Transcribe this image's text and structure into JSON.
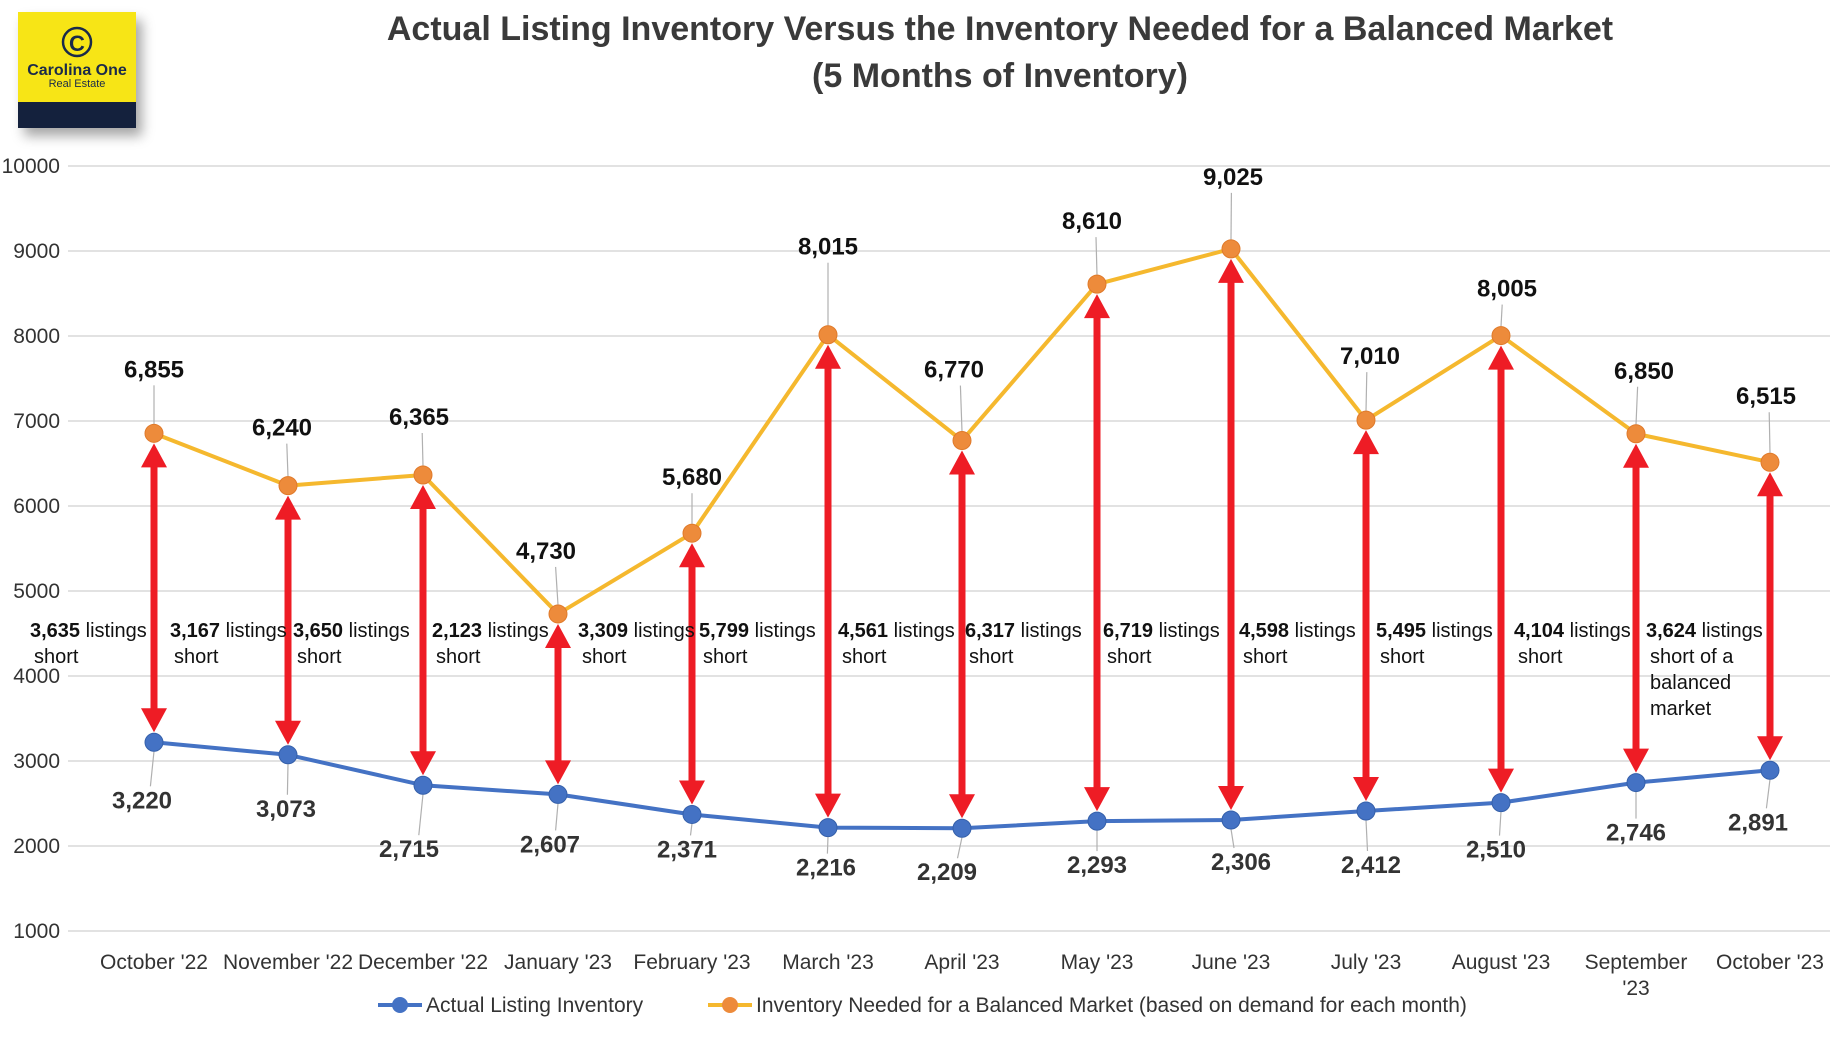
{
  "logo": {
    "name": "Carolina One",
    "subtitle": "Real Estate",
    "yellow": "#f7e514",
    "navy": "#14213d"
  },
  "chart_data": {
    "type": "line",
    "title": "Actual Listing Inventory Versus the Inventory Needed for a Balanced Market",
    "subtitle": "(5 Months of Inventory)",
    "xlabel": "",
    "ylabel": "",
    "ylim": [
      1000,
      10000
    ],
    "yticks": [
      "1000",
      "2000",
      "3000",
      "4000",
      "5000",
      "6000",
      "7000",
      "8000",
      "9000",
      "10000"
    ],
    "grid": true,
    "legend_position": "bottom",
    "categories": [
      [
        "October '22"
      ],
      [
        "November '22"
      ],
      [
        "December '22"
      ],
      [
        "January '23"
      ],
      [
        "February '23"
      ],
      [
        "March '23"
      ],
      [
        "April '23"
      ],
      [
        "May '23"
      ],
      [
        "June '23"
      ],
      [
        "July '23"
      ],
      [
        "August '23"
      ],
      [
        "September",
        "'23"
      ],
      [
        "October '23"
      ]
    ],
    "series": [
      {
        "name": "Actual Listing Inventory",
        "color": "#4472c4",
        "values": [
          3220,
          3073,
          2715,
          2607,
          2371,
          2216,
          2209,
          2293,
          2306,
          2412,
          2510,
          2746,
          2891
        ],
        "labels": [
          "3,220",
          "3,073",
          "2,715",
          "2,607",
          "2,371",
          "2,216",
          "2,209",
          "2,293",
          "2,306",
          "2,412",
          "2,510",
          "2,746",
          "2,891"
        ]
      },
      {
        "name": "Inventory Needed for a Balanced Market (based on demand for each month)",
        "color": "#f5b82e",
        "marker_color": "#ed8b3b",
        "values": [
          6855,
          6240,
          6365,
          4730,
          5680,
          8015,
          6770,
          8610,
          9025,
          7010,
          8005,
          6850,
          6515
        ],
        "labels": [
          "6,855",
          "6,240",
          "6,365",
          "4,730",
          "5,680",
          "8,015",
          "6,770",
          "8,610",
          "9,025",
          "7,010",
          "8,005",
          "6,850",
          "6,515"
        ]
      }
    ],
    "annotations": {
      "arrow_color": "#ee1c25",
      "gaps": [
        {
          "num": "3,635",
          "lines": [
            " listings",
            "short"
          ]
        },
        {
          "num": "3,167",
          "lines": [
            " listings",
            "short"
          ]
        },
        {
          "num": "3,650",
          "lines": [
            " listings",
            "short"
          ]
        },
        {
          "num": "2,123",
          "lines": [
            " listings",
            "short"
          ]
        },
        {
          "num": "3,309",
          "lines": [
            " listings",
            "short"
          ]
        },
        {
          "num": "5,799",
          "lines": [
            " listings",
            "short"
          ]
        },
        {
          "num": "4,561",
          "lines": [
            " listings",
            "short"
          ]
        },
        {
          "num": "6,317",
          "lines": [
            " listings",
            "short"
          ]
        },
        {
          "num": "6,719",
          "lines": [
            " listings",
            "short"
          ]
        },
        {
          "num": "4,598",
          "lines": [
            " listings",
            "short"
          ]
        },
        {
          "num": "5,495",
          "lines": [
            " listings",
            "short"
          ]
        },
        {
          "num": "4,104",
          "lines": [
            " listings",
            "short"
          ]
        },
        {
          "num": "3,624",
          "lines": [
            " listings",
            "short of a",
            "balanced",
            "market"
          ]
        }
      ]
    }
  }
}
